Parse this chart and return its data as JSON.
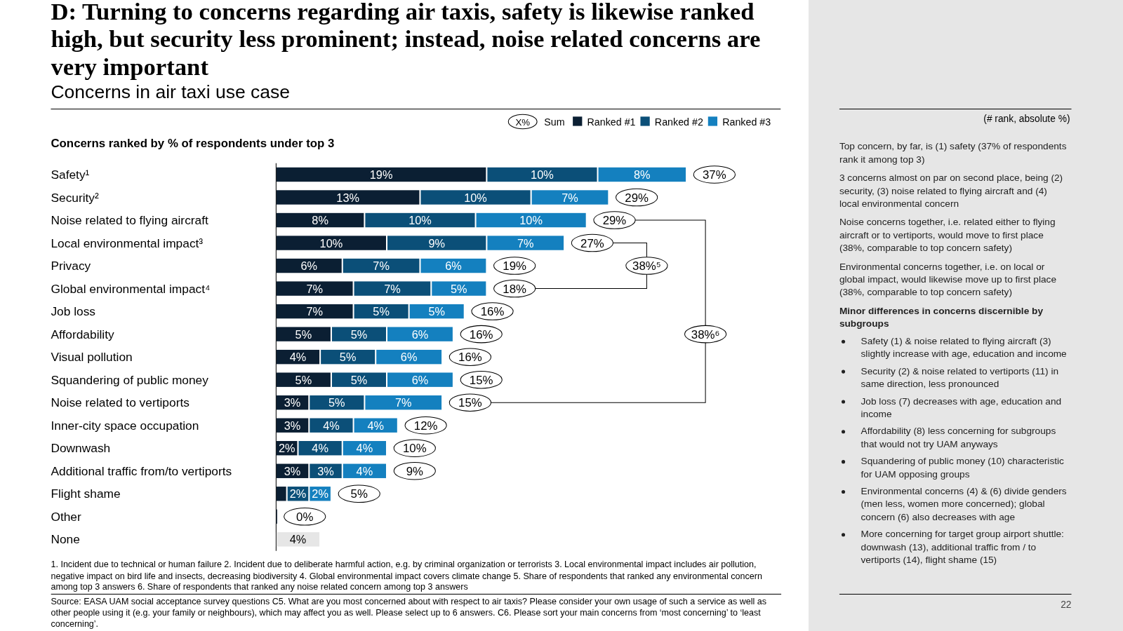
{
  "chart_data": [
    {
      "type": "bar",
      "orientation": "horizontal",
      "stacked": true,
      "title": "D: Turning to concerns regarding air taxis, safety is likewise ranked high, but security less prominent; instead, noise related concerns are very important",
      "subtitle": "Concerns in air taxi use case",
      "legend": "top right",
      "tick_labels": "y",
      "categories": [
        "Safety¹",
        "Security²",
        "Noise related to flying aircraft",
        "Local environmental impact³",
        "Privacy",
        "Global environmental impact⁴",
        "Job loss",
        "Affordability",
        "Visual pollution",
        "Squandering of public money",
        "Noise related to vertiports",
        "Inner-city space occupation",
        "Downwash",
        "Additional traffic from/to vertiports",
        "Flight shame",
        "Other",
        "None"
      ],
      "series": [
        {
          "name": "Ranked #1",
          "color": "#0b1f33",
          "values": [
            19,
            13,
            8,
            10,
            6,
            7,
            7,
            5,
            4,
            5,
            3,
            3,
            2,
            3,
            1,
            0.1,
            null
          ],
          "value_labels": [
            "19%",
            "13%",
            "8%",
            "10%",
            "6%",
            "7%",
            "7%",
            "5%",
            "4%",
            "5%",
            "3%",
            "3%",
            "2%",
            "3%",
            null,
            null,
            null
          ]
        },
        {
          "name": "Ranked #2",
          "color": "#0b4f78",
          "values": [
            10,
            10,
            10,
            9,
            7,
            7,
            5,
            5,
            5,
            5,
            5,
            4,
            4,
            3,
            2,
            null,
            null
          ],
          "value_labels": [
            "10%",
            "10%",
            "10%",
            "9%",
            "7%",
            "7%",
            "5%",
            "5%",
            "5%",
            "5%",
            "5%",
            "4%",
            "4%",
            "3%",
            "2%",
            null,
            null
          ]
        },
        {
          "name": "Ranked #3",
          "color": "#1480bf",
          "values": [
            8,
            7,
            10,
            7,
            6,
            5,
            5,
            6,
            6,
            6,
            7,
            4,
            4,
            4,
            2,
            null,
            null
          ],
          "value_labels": [
            "8%",
            "7%",
            "10%",
            "7%",
            "6%",
            "5%",
            "5%",
            "6%",
            "6%",
            "6%",
            "7%",
            "4%",
            "4%",
            "4%",
            "2%",
            null,
            null
          ]
        },
        {
          "color": "#e6e6e6",
          "values": [
            null,
            null,
            null,
            null,
            null,
            null,
            null,
            null,
            null,
            null,
            null,
            null,
            null,
            null,
            null,
            null,
            4
          ],
          "value_labels": [
            null,
            null,
            null,
            null,
            null,
            null,
            null,
            null,
            null,
            null,
            null,
            null,
            null,
            null,
            null,
            null,
            "4%"
          ]
        }
      ],
      "totals": [
        "37%",
        "29%",
        "29%",
        "27%",
        "19%",
        "18%",
        "16%",
        "16%",
        "16%",
        "15%",
        "15%",
        "12%",
        "10%",
        "9%",
        "5%",
        "0%",
        null
      ],
      "annotations": [
        "Concerns ranked by % of respondents under top 3",
        "X%",
        "Sum",
        "1. Incident due to technical or human failure   2. Incident due to deliberate harmful action, e.g. by criminal organization or terrorists   3. Local environmental impact includes air pollution, negative impact on bird life and insects, decreasing biodiversity   4. Global environmental impact covers climate change   5. Share of respondents that ranked any environmental concern among top 3 answers   6. Share of respondents that ranked any noise related concern among top 3 answers",
        "Source: EASA UAM social acceptance survey questions C5. What are you most concerned about with respect to air taxis? Please consider your own usage of such a service as well as other people using it (e.g. your family or neighbours), which may affect you as well. Please select up to 6 answers. C6. Please sort your main concerns from ‘most concerning’ to ‘least concerning’.",
        "38%⁵",
        "38%⁶"
      ]
    },
    {
      "type": "other",
      "annotations": [
        "(# rank, absolute %)",
        "Top concern, by far, is (1) safety (37% of respondents rank it among top 3)",
        "3 concerns almost on par on second place, being (2) security, (3) noise related to flying aircraft and (4) local environmental concern",
        "Noise concerns together, i.e. related either to flying aircraft or to vertiports, would move to first place (38%, comparable to top concern safety)",
        "Environmental concerns together, i.e. on local or global impact, would likewise move up to first place (38%, comparable to top concern safety)",
        "Minor differences in concerns discernible by subgroups",
        "Safety (1) & noise related to flying aircraft (3) slightly increase with age, education and income",
        "Security (2) & noise related to vertiports (11) in same direction, less pronounced",
        "Job loss (7) decreases with age, education and income",
        "Affordability (8) less concerning for subgroups that would not try UAM anyways",
        "Squandering of public money (10) characteristic for UAM opposing groups",
        "Environmental concerns (4) & (6) divide genders (men less, women more concerned); global concern (6) also decreases with age",
        "More concerning for target group airport shuttle: downwash (13), additional traffic from / to vertiports (14), flight shame (15)",
        "22"
      ]
    }
  ]
}
